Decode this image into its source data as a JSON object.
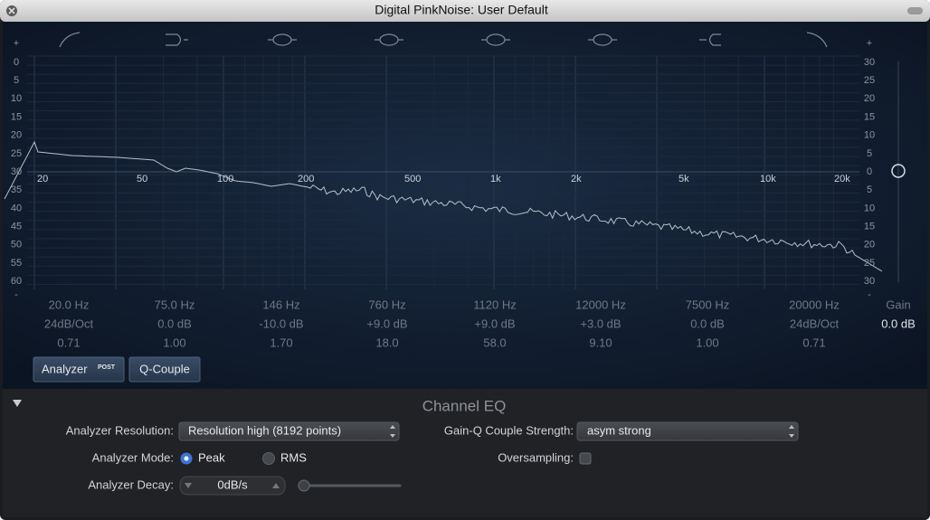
{
  "window": {
    "title": "Digital PinkNoise: User Default"
  },
  "graph": {
    "left_scale": [
      "+",
      "0",
      "5",
      "10",
      "15",
      "20",
      "25",
      "30",
      "35",
      "40",
      "45",
      "50",
      "55",
      "60",
      "-"
    ],
    "right_scale": [
      "+",
      "30",
      "25",
      "20",
      "15",
      "10",
      "5",
      "0",
      "5",
      "10",
      "15",
      "20",
      "25",
      "30",
      "-"
    ],
    "freq_labels": [
      "20",
      "50",
      "100",
      "200",
      "500",
      "1k",
      "2k",
      "5k",
      "10k",
      "20k"
    ]
  },
  "bands": [
    {
      "frequency": "20.0 Hz",
      "gain": "24dB/Oct",
      "q": "0.71"
    },
    {
      "frequency": "75.0 Hz",
      "gain": "0.0 dB",
      "q": "1.00"
    },
    {
      "frequency": "146 Hz",
      "gain": "-10.0 dB",
      "q": "1.70"
    },
    {
      "frequency": "760 Hz",
      "gain": "+9.0 dB",
      "q": "18.0"
    },
    {
      "frequency": "1120 Hz",
      "gain": "+9.0 dB",
      "q": "58.0"
    },
    {
      "frequency": "12000 Hz",
      "gain": "+3.0 dB",
      "q": "9.10"
    },
    {
      "frequency": "7500 Hz",
      "gain": "0.0 dB",
      "q": "1.00"
    },
    {
      "frequency": "20000 Hz",
      "gain": "24dB/Oct",
      "q": "0.71"
    }
  ],
  "gain": {
    "label": "Gain",
    "value": "0.0 dB"
  },
  "buttons": {
    "analyzer": "Analyzer",
    "post": "POST",
    "q_couple": "Q-Couple"
  },
  "settings": {
    "title": "Channel EQ",
    "analyzer_resolution": {
      "label": "Analyzer Resolution:",
      "value": "Resolution high (8192 points)"
    },
    "gain_q_couple_strength": {
      "label": "Gain-Q Couple Strength:",
      "value": "asym strong"
    },
    "analyzer_mode": {
      "label": "Analyzer Mode:",
      "options": [
        "Peak",
        "RMS"
      ]
    },
    "oversampling": {
      "label": "Oversampling:"
    },
    "analyzer_decay": {
      "label": "Analyzer Decay:",
      "value": "0dB/s"
    }
  }
}
